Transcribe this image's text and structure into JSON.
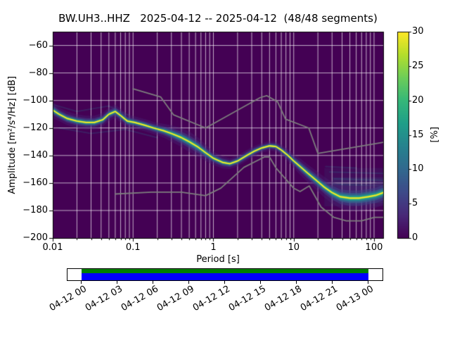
{
  "figure": {
    "title": "BW.UH3..HHZ   2025-04-12 -- 2025-04-12  (48/48 segments)",
    "xlabel": "Period [s]",
    "ylabel": "Amplitude [m²/s⁴/Hz] [dB]",
    "colorbar_label": "[%]"
  },
  "chart_data": {
    "type": "heatmap",
    "subtype": "probabilistic-power-spectral-density",
    "title": "BW.UH3..HHZ   2025-04-12 -- 2025-04-12  (48/48 segments)",
    "station": "BW.UH3..HHZ",
    "date_range": "2025-04-12 -- 2025-04-12",
    "segments": "48/48",
    "xlabel": "Period [s]",
    "ylabel": "Amplitude [m²/s⁴/Hz] [dB]",
    "xscale": "log",
    "xlim": [
      0.01,
      130
    ],
    "ylim": [
      -200,
      -50
    ],
    "grid": true,
    "background_color": "#440154",
    "grid_color": "rgba(255,255,255,0.85)",
    "noise_model_color": "#7d7d7d",
    "colorbar": {
      "label": "[%]",
      "min": 0,
      "max": 30,
      "colormap": "viridis",
      "tick_values": [
        0,
        5,
        10,
        15,
        20,
        25,
        30
      ],
      "tick_labels": [
        "0",
        "5",
        "10",
        "15",
        "20",
        "25",
        "30"
      ]
    },
    "x_tick_values": [
      0.01,
      0.1,
      1,
      10,
      100
    ],
    "x_tick_labels": [
      "0.01",
      "0.1",
      "1",
      "10",
      "100"
    ],
    "y_tick_values": [
      -60,
      -80,
      -100,
      -120,
      -140,
      -160,
      -180,
      -200
    ],
    "y_tick_labels": [
      "−60",
      "−80",
      "−100",
      "−120",
      "−140",
      "−160",
      "−180",
      "−200"
    ],
    "mode_curve": {
      "name": "PPSD mode ridge (probability ~30%)",
      "units": {
        "x": "s",
        "y": "dB",
        "spread": "dB half-width"
      },
      "points": [
        [
          0.01,
          -107,
          6
        ],
        [
          0.012,
          -110,
          5
        ],
        [
          0.015,
          -113,
          5
        ],
        [
          0.02,
          -115,
          5
        ],
        [
          0.026,
          -116,
          5
        ],
        [
          0.033,
          -116,
          5
        ],
        [
          0.042,
          -114,
          5
        ],
        [
          0.05,
          -110,
          5
        ],
        [
          0.06,
          -108,
          5
        ],
        [
          0.07,
          -111,
          5
        ],
        [
          0.085,
          -115,
          5
        ],
        [
          0.105,
          -116,
          4.5
        ],
        [
          0.14,
          -118,
          4.5
        ],
        [
          0.18,
          -120,
          4.5
        ],
        [
          0.24,
          -122,
          5
        ],
        [
          0.3,
          -124,
          6
        ],
        [
          0.4,
          -127,
          7
        ],
        [
          0.5,
          -130,
          7.5
        ],
        [
          0.65,
          -134,
          7
        ],
        [
          0.8,
          -138,
          6
        ],
        [
          1.0,
          -142,
          5
        ],
        [
          1.3,
          -145,
          4.5
        ],
        [
          1.6,
          -146,
          4
        ],
        [
          2.0,
          -144,
          4
        ],
        [
          2.6,
          -140,
          4
        ],
        [
          3.2,
          -137,
          4
        ],
        [
          4.0,
          -134.5,
          3.5
        ],
        [
          5.0,
          -133,
          3.5
        ],
        [
          6.0,
          -133.5,
          3.5
        ],
        [
          7.0,
          -136,
          4
        ],
        [
          8.5,
          -140,
          4.5
        ],
        [
          10.0,
          -144,
          5
        ],
        [
          12.0,
          -148,
          6
        ],
        [
          15.0,
          -153,
          6.5
        ],
        [
          19.0,
          -158,
          7
        ],
        [
          24.0,
          -163,
          7.5
        ],
        [
          30.0,
          -167,
          8
        ],
        [
          38.0,
          -170,
          8.5
        ],
        [
          50.0,
          -171,
          9
        ],
        [
          65.0,
          -171,
          9
        ],
        [
          85.0,
          -170,
          9
        ],
        [
          105.0,
          -169,
          9
        ],
        [
          130.0,
          -167,
          9
        ]
      ]
    },
    "noise_models": {
      "nlnm": [
        [
          0.06,
          -168
        ],
        [
          0.17,
          -166.7
        ],
        [
          0.4,
          -166.7
        ],
        [
          0.8,
          -169.2
        ],
        [
          1.24,
          -163.7
        ],
        [
          2.4,
          -148.6
        ],
        [
          4.3,
          -141.1
        ],
        [
          5.0,
          -141.1
        ],
        [
          6.0,
          -149.0
        ],
        [
          10.0,
          -163.8
        ],
        [
          12.0,
          -166.2
        ],
        [
          15.6,
          -162.1
        ],
        [
          21.9,
          -177.5
        ],
        [
          31.6,
          -185.0
        ],
        [
          45.0,
          -187.5
        ],
        [
          70.0,
          -187.5
        ],
        [
          101.0,
          -185.0
        ],
        [
          130.0,
          -185.0
        ]
      ],
      "nhnm": [
        [
          0.1,
          -91.5
        ],
        [
          0.22,
          -97.4
        ],
        [
          0.32,
          -110.5
        ],
        [
          0.8,
          -120.0
        ],
        [
          3.8,
          -98.0
        ],
        [
          4.6,
          -96.5
        ],
        [
          6.3,
          -101.0
        ],
        [
          7.9,
          -113.5
        ],
        [
          15.4,
          -120.0
        ],
        [
          20.0,
          -138.5
        ],
        [
          130.0,
          -130.4
        ]
      ]
    },
    "haze_regions": [
      {
        "t_range": [
          24,
          130
        ],
        "top_db": -149,
        "bottom_db": -177,
        "alpha": 0.13
      },
      {
        "t_range": [
          30,
          130
        ],
        "top_db": -156,
        "bottom_db": -173,
        "alpha": 0.18
      }
    ],
    "haze_streaks": [
      [
        [
          28,
          -152
        ],
        [
          130,
          -153
        ]
      ],
      [
        [
          32,
          -157
        ],
        [
          130,
          -158
        ]
      ],
      [
        [
          30,
          -161
        ],
        [
          130,
          -162
        ]
      ],
      [
        [
          40,
          -174
        ],
        [
          130,
          -174
        ]
      ],
      [
        [
          25,
          -148
        ],
        [
          60,
          -149
        ]
      ],
      [
        [
          0.01,
          -103
        ],
        [
          0.02,
          -108
        ],
        [
          0.05,
          -104
        ],
        [
          0.09,
          -111
        ]
      ],
      [
        [
          0.012,
          -120
        ],
        [
          0.03,
          -124
        ],
        [
          0.08,
          -121
        ],
        [
          0.2,
          -127
        ]
      ]
    ]
  },
  "timeline": {
    "tick_labels": [
      "04-12 00",
      "04-12 03",
      "04-12 06",
      "04-12 09",
      "04-12 12",
      "04-12 15",
      "04-12 18",
      "04-12 21",
      "04-13 00"
    ],
    "segment_top_color": "#008000",
    "segment_bottom_color": "#0000ff",
    "outline_color": "#000000"
  }
}
